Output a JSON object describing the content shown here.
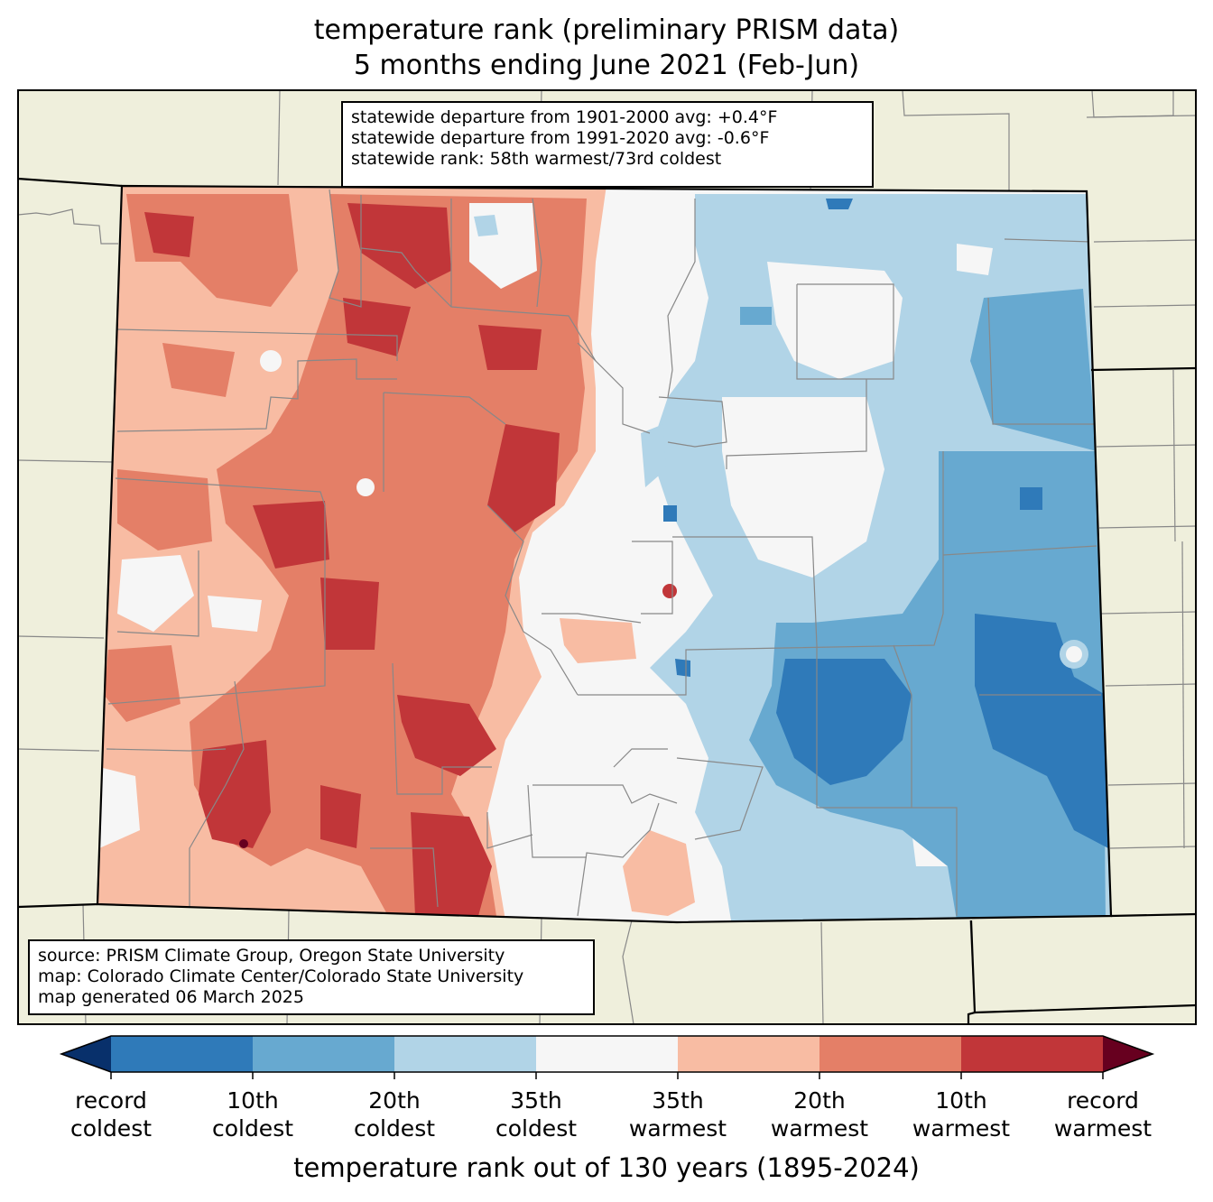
{
  "title": {
    "line1": "temperature rank (preliminary PRISM data)",
    "line2": "5 months ending June 2021 (Feb-Jun)"
  },
  "stats": {
    "line1": "statewide departure from 1901-2000 avg: +0.4°F",
    "line2": "statewide departure from 1991-2020 avg: -0.6°F",
    "line3": "statewide rank: 58th warmest/73rd coldest"
  },
  "credits": {
    "line1": "source: PRISM Climate Group, Oregon State University",
    "line2": "map: Colorado Climate Center/Colorado State University",
    "line3": "map generated 06 March 2025"
  },
  "colorbar": {
    "label": "temperature rank out of 130 years (1895-2024)",
    "colors": [
      "#08306b",
      "#2f7ab9",
      "#67a9d0",
      "#b1d4e7",
      "#f6f6f6",
      "#f8bca3",
      "#e47f67",
      "#c13639",
      "#67001f"
    ],
    "ticks": [
      {
        "line1": "record",
        "line2": "coldest"
      },
      {
        "line1": "10th",
        "line2": "coldest"
      },
      {
        "line1": "20th",
        "line2": "coldest"
      },
      {
        "line1": "35th",
        "line2": "coldest"
      },
      {
        "line1": "35th",
        "line2": "warmest"
      },
      {
        "line1": "20th",
        "line2": "warmest"
      },
      {
        "line1": "10th",
        "line2": "warmest"
      },
      {
        "line1": "record",
        "line2": "warmest"
      }
    ]
  },
  "map_colors": {
    "land": "#efefdc",
    "record_warm": "#67001f",
    "warm10": "#c13639",
    "warm20": "#e47f67",
    "warm35": "#f8bca3",
    "normal": "#f6f6f6",
    "cold35": "#b1d4e7",
    "cold20": "#67a9d0",
    "cold10": "#2f7ab9"
  }
}
